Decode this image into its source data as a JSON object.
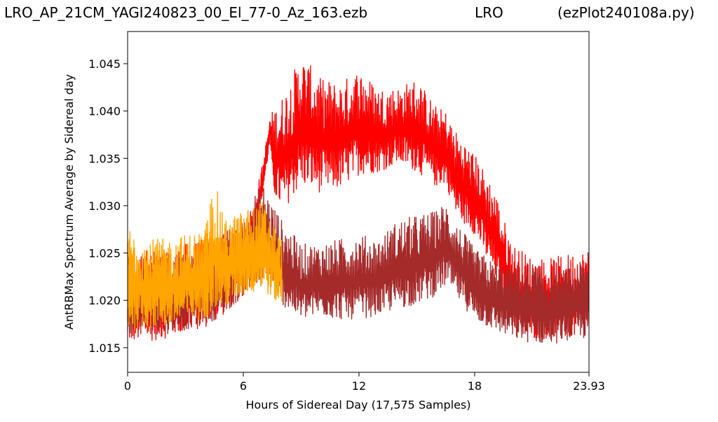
{
  "header": {
    "title_left": "LRO_AP_21CM_YAGI240823_00_El_77-0_Az_163.ezb",
    "title_mid": "LRO",
    "title_right": "(ezPlot240108a.py)"
  },
  "chart_data": {
    "type": "line",
    "xlabel": "Hours of Sidereal Day  (17,575 Samples)",
    "ylabel": "AntRBMax Spectrum Average by Sidereal day",
    "xlim": [
      0,
      23.93
    ],
    "ylim": [
      1.0124,
      1.0484
    ],
    "xticks": [
      0,
      6,
      12,
      18,
      23.93
    ],
    "xtick_labels": [
      "0",
      "6",
      "12",
      "18",
      "23.93"
    ],
    "yticks": [
      1.015,
      1.02,
      1.025,
      1.03,
      1.035,
      1.04,
      1.045
    ],
    "ytick_labels": [
      "1.015",
      "1.020",
      "1.025",
      "1.030",
      "1.035",
      "1.040",
      "1.045"
    ],
    "grid": false,
    "series": [
      {
        "color": "#ff0000",
        "x": [
          0,
          1,
          2,
          3,
          4,
          5,
          6,
          6.5,
          7,
          7.4,
          7.5,
          8,
          9,
          10,
          11,
          12,
          13,
          14,
          15,
          16,
          16.5,
          17,
          18,
          19,
          19.7,
          20,
          21,
          22,
          23,
          23.93
        ],
        "y_min": [
          1.0145,
          1.0145,
          1.015,
          1.0155,
          1.016,
          1.0175,
          1.0195,
          1.0245,
          1.0305,
          1.0365,
          1.0305,
          1.028,
          1.0305,
          1.03,
          1.0305,
          1.032,
          1.0325,
          1.0335,
          1.0325,
          1.031,
          1.0315,
          1.028,
          1.026,
          1.0215,
          1.018,
          1.0155,
          1.015,
          1.015,
          1.015,
          1.015
        ],
        "y_max": [
          1.0245,
          1.0255,
          1.025,
          1.026,
          1.0265,
          1.027,
          1.0285,
          1.03,
          1.0345,
          1.0395,
          1.04,
          1.0415,
          1.046,
          1.0435,
          1.043,
          1.0445,
          1.0425,
          1.0425,
          1.0435,
          1.0405,
          1.04,
          1.038,
          1.0355,
          1.032,
          1.0275,
          1.026,
          1.0245,
          1.0245,
          1.025,
          1.0255
        ]
      },
      {
        "color": "#a52a2a",
        "x": [
          0,
          1,
          2,
          3,
          4,
          5,
          6,
          7,
          8,
          9,
          10,
          11,
          12,
          13,
          14,
          15,
          16,
          16.5,
          17,
          18,
          19,
          20,
          21,
          22,
          23,
          23.93
        ],
        "y_min": [
          1.015,
          1.0155,
          1.0155,
          1.016,
          1.0165,
          1.0175,
          1.0195,
          1.02,
          1.0185,
          1.017,
          1.0175,
          1.017,
          1.017,
          1.0175,
          1.018,
          1.0185,
          1.0195,
          1.0205,
          1.0195,
          1.017,
          1.016,
          1.015,
          1.0145,
          1.0145,
          1.015,
          1.015
        ],
        "y_max": [
          1.024,
          1.0245,
          1.025,
          1.025,
          1.0255,
          1.027,
          1.0295,
          1.0325,
          1.0285,
          1.026,
          1.026,
          1.0265,
          1.027,
          1.0265,
          1.0285,
          1.029,
          1.0295,
          1.0305,
          1.0285,
          1.0255,
          1.024,
          1.0235,
          1.024,
          1.023,
          1.0235,
          1.0245
        ]
      },
      {
        "color": "#ffa500",
        "x": [
          0,
          1,
          2,
          3,
          4,
          4.5,
          5,
          6,
          7,
          8
        ],
        "y_min": [
          1.0155,
          1.016,
          1.016,
          1.0165,
          1.017,
          1.0175,
          1.018,
          1.0195,
          1.02,
          1.0185
        ],
        "y_max": [
          1.028,
          1.0265,
          1.0265,
          1.027,
          1.0275,
          1.033,
          1.0285,
          1.0295,
          1.0305,
          1.0265
        ]
      }
    ]
  }
}
